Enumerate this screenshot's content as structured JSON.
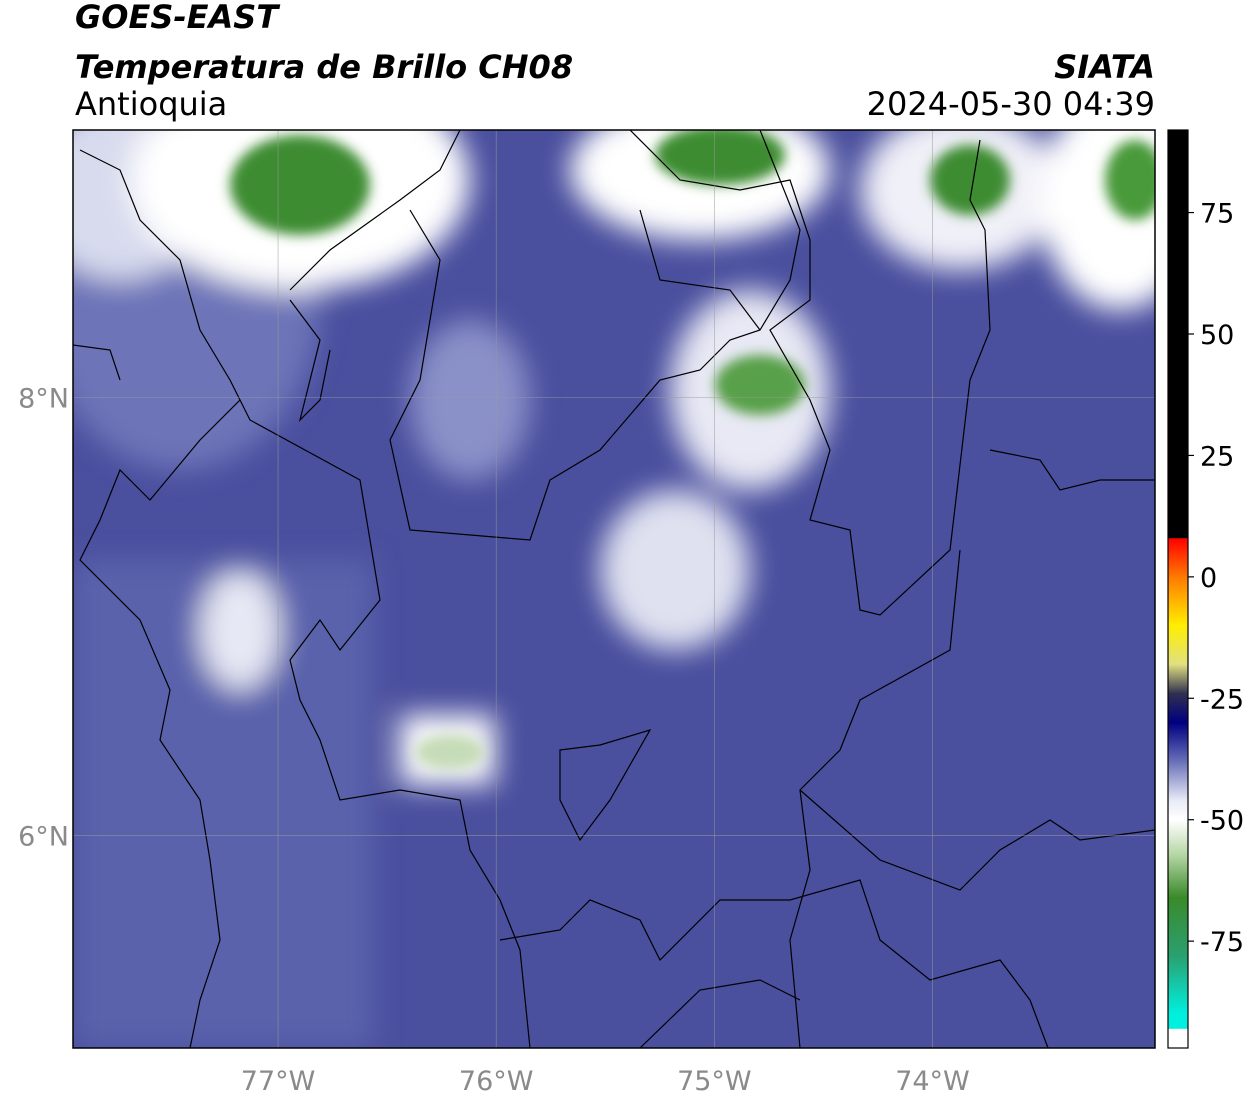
{
  "header": {
    "satellite": "GOES-EAST",
    "product": "Temperatura de Brillo CH08",
    "region": "Antioquia",
    "source": "SIATA",
    "datetime": "2024-05-30 04:39"
  },
  "map": {
    "xlim": [
      -77.94,
      -72.98
    ],
    "ylim": [
      5.03,
      9.22
    ],
    "xticks": [
      {
        "value": -77,
        "label": "77°W"
      },
      {
        "value": -76,
        "label": "76°W"
      },
      {
        "value": -75,
        "label": "75°W"
      },
      {
        "value": -74,
        "label": "74°W"
      }
    ],
    "yticks": [
      {
        "value": 8,
        "label": "8°N"
      },
      {
        "value": 6,
        "label": "6°N"
      }
    ],
    "grid": true
  },
  "colorbar": {
    "lim": [
      -97,
      92
    ],
    "ticks": [
      75,
      50,
      25,
      0,
      -25,
      -50,
      -75
    ],
    "stops": [
      {
        "value": 92,
        "color": "#000000"
      },
      {
        "value": 8,
        "color": "#000000"
      },
      {
        "value": 7.9,
        "color": "#ff0000"
      },
      {
        "value": 0,
        "color": "#ff7a00"
      },
      {
        "value": -10,
        "color": "#ffee00"
      },
      {
        "value": -18,
        "color": "#e0e080"
      },
      {
        "value": -24,
        "color": "#303050"
      },
      {
        "value": -30,
        "color": "#000080"
      },
      {
        "value": -38,
        "color": "#6870b8"
      },
      {
        "value": -46,
        "color": "#e8eaf6"
      },
      {
        "value": -50,
        "color": "#ffffff"
      },
      {
        "value": -57,
        "color": "#b8d8a8"
      },
      {
        "value": -66,
        "color": "#3a8a2a"
      },
      {
        "value": -78,
        "color": "#2aa070"
      },
      {
        "value": -90,
        "color": "#00f0e0"
      },
      {
        "value": -93,
        "color": "#00f0e0"
      },
      {
        "value": -93.1,
        "color": "#ffffff"
      },
      {
        "value": -97,
        "color": "#ffffff"
      }
    ]
  }
}
